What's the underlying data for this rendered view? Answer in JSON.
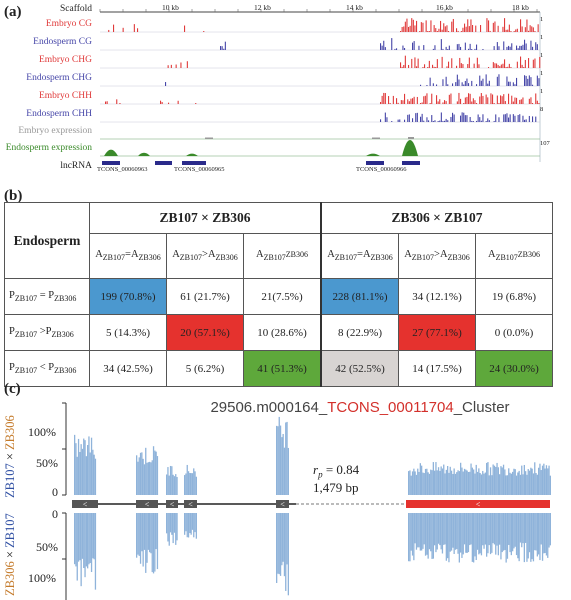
{
  "panels": {
    "a": "(a)",
    "b": "(b)",
    "c": "(c)"
  },
  "panel_a": {
    "scaffold_label": "Scaffold",
    "scale_ticks": [
      "10 kb",
      "12 kb",
      "14 kb",
      "16 kb",
      "18 kb"
    ],
    "tracks": [
      {
        "label": "Embryo CG",
        "color": "#e03a3a",
        "max": "1"
      },
      {
        "label": "Endosperm CG",
        "color": "#4646a8",
        "max": "1"
      },
      {
        "label": "Embryo CHG",
        "color": "#e03a3a",
        "max": "1"
      },
      {
        "label": "Endosperm CHG",
        "color": "#4646a8",
        "max": "1"
      },
      {
        "label": "Embryo CHH",
        "color": "#e03a3a",
        "max": "1"
      },
      {
        "label": "Endosperm CHH",
        "color": "#4646a8",
        "max": "8"
      },
      {
        "label": "Embryo expression",
        "color": "#999999",
        "max": ""
      },
      {
        "label": "Endosperm expression",
        "color": "#3a8a2a",
        "max": "107"
      },
      {
        "label": "lncRNA",
        "color": "#222222",
        "max": ""
      }
    ],
    "lncrna_ids": [
      "TCONS_00060963",
      "TCONS_00060965",
      "TCONS_00060966"
    ]
  },
  "panel_b": {
    "corner": "Endosperm",
    "cross1": "ZB107 × ZB306",
    "cross2": "ZB306 × ZB107",
    "col_headers": [
      "A_ZB107=A_ZB306",
      "A_ZB107>A_ZB306",
      "A_ZB107<A_ZB306"
    ],
    "row_headers": [
      "P_ZB107 = P_ZB306",
      "P_ZB107 >P_ZB306",
      "P_ZB107 < P_ZB306"
    ],
    "cells": [
      [
        "199 (70.8%)",
        "61 (21.7%)",
        "21(7.5%)",
        "228 (81.1%)",
        "34 (12.1%)",
        "19 (6.8%)"
      ],
      [
        "5 (14.3%)",
        "20 (57.1%)",
        "10 (28.6%)",
        "8 (22.9%)",
        "27 (77.1%)",
        "0 (0.0%)"
      ],
      [
        "34 (42.5%)",
        "5 (6.2%)",
        "41 (51.3%)",
        "42 (52.5%)",
        "14 (17.5%)",
        "24 (30.0%)"
      ]
    ]
  },
  "panel_c": {
    "title_prefix": "29506.m000164_",
    "title_red": "TCONS_00011704",
    "title_suffix": "_Cluster",
    "y_top": [
      "100%",
      "50%",
      "0"
    ],
    "y_bottom": [
      "0",
      "50%",
      "100%"
    ],
    "side_top": [
      "ZB107",
      " × ",
      "ZB306"
    ],
    "side_bottom": [
      "ZB306",
      " × ",
      "ZB107"
    ],
    "rp": "r",
    "rp_sub": "p",
    "rp_value": " = 0.84",
    "length": "1,479 bp"
  }
}
